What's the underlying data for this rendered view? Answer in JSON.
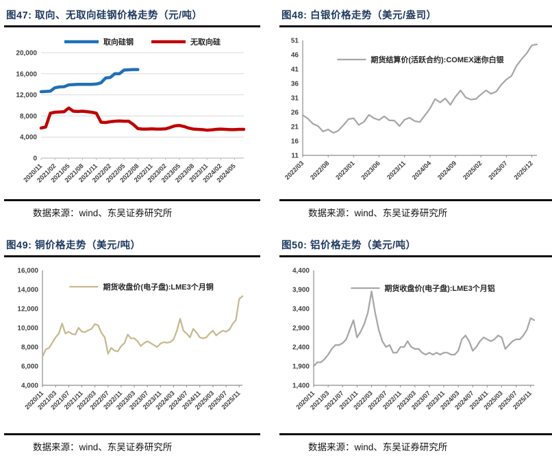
{
  "panels": [
    {
      "title": "图47: 取向、无取向硅钢价格走势（元/吨）",
      "source": "数据来源：wind、东吴证券研究所"
    },
    {
      "title": "图48: 白银价格走势（美元/盎司）",
      "source": "数据来源：wind、东吴证券研究所"
    },
    {
      "title": "图49: 铜价格走势（美元/吨）",
      "source": "数据来源：wind、东吴证券研究所"
    },
    {
      "title": "图50: 铝价格走势（美元/吨）",
      "source": "数据来源：wind、东吴证券研究所"
    }
  ],
  "chart_data": [
    {
      "type": "line",
      "title": "图47: 取向、无取向硅钢价格走势（元/吨）",
      "ylim": [
        0,
        20000
      ],
      "ytick_step": 4000,
      "number_format": "comma",
      "grid": true,
      "axes_left": false,
      "legend_position": "top-center",
      "xtick_rotation_deg": 45,
      "points_per_tick": 3,
      "x_tick_labels": [
        "2020/11",
        "2021/02",
        "2021/05",
        "2021/08",
        "2021/11",
        "2022/02",
        "2022/05",
        "2022/08",
        "2022/11",
        "2023/02",
        "2023/05",
        "2023/08",
        "2023/11",
        "2024/02",
        "2024/05"
      ],
      "series": [
        {
          "name": "取向硅钢",
          "color": "#1F70B7",
          "width": 4.5,
          "values": [
            12600,
            12650,
            12700,
            13350,
            13500,
            13550,
            13900,
            13950,
            14000,
            14000,
            14000,
            14000,
            14050,
            14300,
            15200,
            15300,
            16000,
            16000,
            16700,
            16750,
            16800,
            16800
          ]
        },
        {
          "name": "无取向硅",
          "color": "#C00000",
          "width": 4.5,
          "values": [
            5700,
            5900,
            8500,
            8700,
            8750,
            8800,
            9500,
            8900,
            8850,
            8900,
            8800,
            8700,
            8500,
            6800,
            6750,
            6900,
            7000,
            7050,
            7000,
            7000,
            6400,
            5600,
            5500,
            5500,
            5550,
            5500,
            5500,
            5550,
            5800,
            6100,
            6200,
            6000,
            5700,
            5500,
            5450,
            5400,
            5300,
            5350,
            5450,
            5500,
            5450,
            5400,
            5400,
            5450,
            5450
          ]
        }
      ]
    },
    {
      "type": "line",
      "title": "图48: 白银价格走势（美元/盎司）",
      "ylim": [
        11,
        51
      ],
      "ytick_step": 5,
      "number_format": "plain",
      "grid": false,
      "axes_left": true,
      "legend_position": "top-center",
      "xtick_rotation_deg": 45,
      "points_per_tick": 5,
      "x_tick_labels": [
        "2022/03",
        "2022/08",
        "2023/01",
        "2023/06",
        "2023/11",
        "2024/04",
        "2024/09",
        "2025/02",
        "2025/07",
        "2025/12"
      ],
      "series": [
        {
          "name": "期货结算价(活跃合约):COMEX迷你白银",
          "color": "#A7A7A7",
          "width": 2.3,
          "values": [
            25.0,
            23.8,
            22.0,
            21.2,
            19.3,
            20.0,
            18.8,
            19.6,
            21.5,
            23.6,
            23.9,
            21.6,
            22.6,
            25.1,
            23.9,
            23.3,
            24.6,
            23.2,
            23.1,
            21.2,
            23.4,
            24.1,
            22.9,
            22.6,
            24.9,
            27.3,
            30.6,
            29.4,
            30.8,
            28.6,
            31.4,
            33.6,
            31.2,
            30.4,
            30.6,
            32.2,
            33.6,
            32.4,
            33.2,
            35.6,
            37.4,
            38.6,
            42.2,
            44.5,
            46.5,
            49.3,
            49.6
          ]
        }
      ]
    },
    {
      "type": "line",
      "title": "图49: 铜价格走势（美元/吨）",
      "ylim": [
        4000,
        16000
      ],
      "ytick_step": 2000,
      "number_format": "comma",
      "grid": false,
      "axes_left": true,
      "legend_position": "top-center",
      "xtick_rotation_deg": 45,
      "points_per_tick": 4,
      "x_tick_labels": [
        "2020/11",
        "2021/03",
        "2021/07",
        "2021/11",
        "2022/03",
        "2022/07",
        "2022/11",
        "2023/03",
        "2023/07",
        "2023/11",
        "2024/03",
        "2024/07",
        "2024/11",
        "2025/03",
        "2025/07",
        "2025/11"
      ],
      "series": [
        {
          "name": "期货收盘价(电子盘):LME3个月铜",
          "color": "#C5BA8F",
          "width": 2.3,
          "values": [
            6950,
            7750,
            7900,
            8450,
            9000,
            9400,
            10450,
            9400,
            9600,
            9350,
            9300,
            10000,
            9600,
            9550,
            9750,
            9900,
            10400,
            10250,
            9450,
            9000,
            7300,
            7900,
            7600,
            7550,
            8100,
            8400,
            9300,
            8900,
            8900,
            8600,
            8100,
            8400,
            8600,
            8400,
            8200,
            8000,
            8350,
            8500,
            8450,
            8500,
            8800,
            9700,
            10950,
            9700,
            9400,
            9000,
            9900,
            9500,
            9000,
            8900,
            9000,
            9400,
            9700,
            9200,
            9500,
            9700,
            9600,
            9800,
            10400,
            10800,
            13000,
            13300
          ]
        }
      ]
    },
    {
      "type": "line",
      "title": "图50: 铝价格走势（美元/吨）",
      "ylim": [
        1400,
        4400
      ],
      "ytick_step": 500,
      "number_format": "comma",
      "grid": false,
      "axes_left": true,
      "legend_position": "top-center",
      "xtick_rotation_deg": 45,
      "points_per_tick": 4,
      "x_tick_labels": [
        "2020/11",
        "2021/03",
        "2021/07",
        "2021/11",
        "2022/03",
        "2022/07",
        "2022/11",
        "2023/03",
        "2023/07",
        "2023/11",
        "2024/03",
        "2024/07",
        "2024/11",
        "2025/03",
        "2025/07",
        "2025/11"
      ],
      "series": [
        {
          "name": "期货收盘价(电子盘):LME3个月铝",
          "color": "#A7A7A7",
          "width": 2.3,
          "values": [
            1900,
            2000,
            2000,
            2080,
            2200,
            2350,
            2450,
            2450,
            2500,
            2600,
            2850,
            3100,
            2650,
            2800,
            3000,
            3300,
            3850,
            3300,
            2850,
            2550,
            2400,
            2450,
            2250,
            2250,
            2400,
            2400,
            2550,
            2400,
            2350,
            2350,
            2250,
            2200,
            2250,
            2200,
            2250,
            2200,
            2250,
            2250,
            2200,
            2200,
            2300,
            2600,
            2700,
            2550,
            2300,
            2400,
            2550,
            2650,
            2600,
            2550,
            2600,
            2700,
            2650,
            2350,
            2450,
            2550,
            2600,
            2600,
            2700,
            2850,
            3150,
            3100
          ]
        }
      ]
    }
  ]
}
